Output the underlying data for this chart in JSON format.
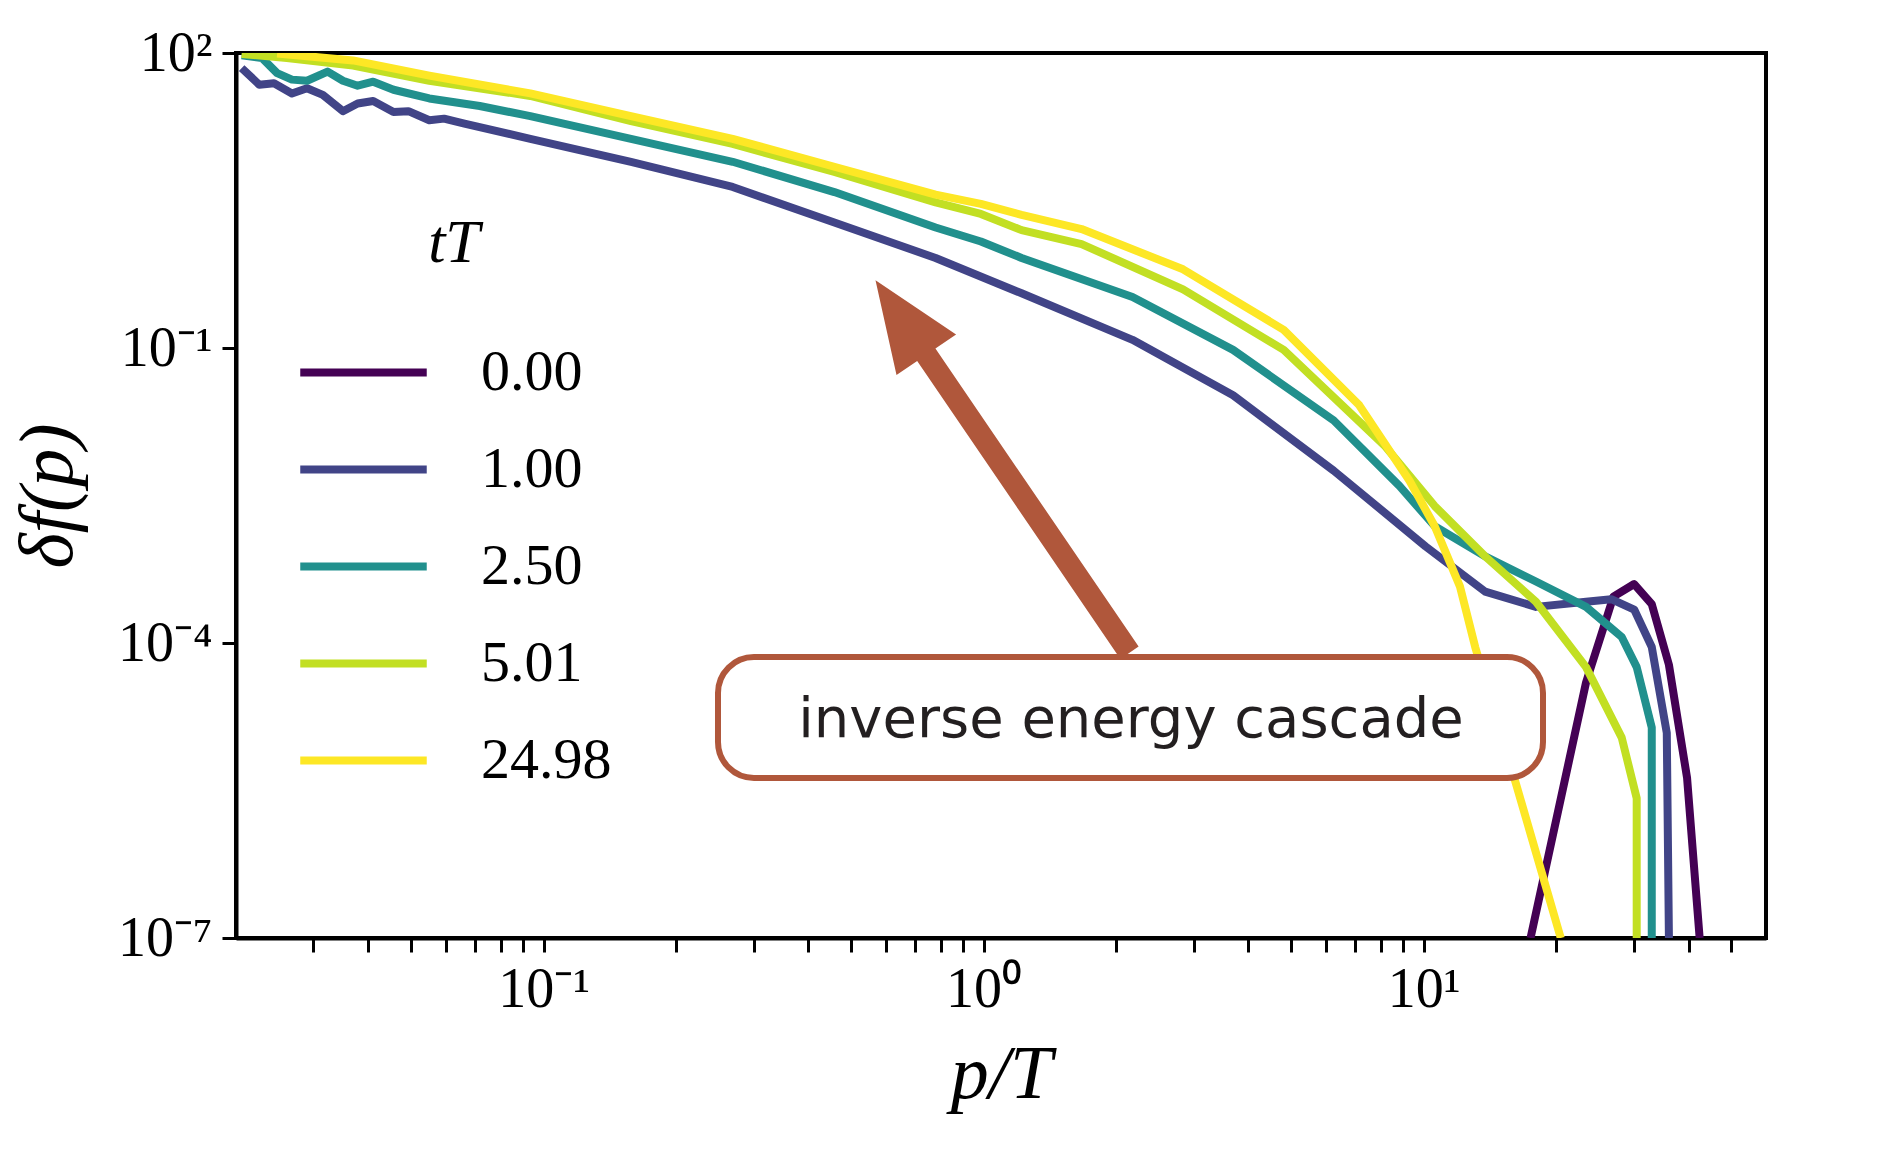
{
  "chart_data": {
    "type": "line",
    "xlabel": "p/T",
    "ylabel": "δf(p)",
    "legend_title": "tT",
    "log": "xy",
    "grid": false,
    "legend": "left",
    "xlim": [
      0.02,
      60
    ],
    "ylim": [
      1e-07,
      100
    ],
    "xticks": [
      {
        "value": 0.03,
        "label": null
      },
      {
        "value": 0.04,
        "label": null
      },
      {
        "value": 0.05,
        "label": null
      },
      {
        "value": 0.06,
        "label": null
      },
      {
        "value": 0.07,
        "label": null
      },
      {
        "value": 0.08,
        "label": null
      },
      {
        "value": 0.09,
        "label": null
      },
      {
        "value": 0.1,
        "label": "10⁻¹"
      },
      {
        "value": 0.2,
        "label": null
      },
      {
        "value": 0.3,
        "label": null
      },
      {
        "value": 0.4,
        "label": null
      },
      {
        "value": 0.5,
        "label": null
      },
      {
        "value": 0.6,
        "label": null
      },
      {
        "value": 0.7,
        "label": null
      },
      {
        "value": 0.8,
        "label": null
      },
      {
        "value": 0.9,
        "label": null
      },
      {
        "value": 1,
        "label": "10⁰"
      },
      {
        "value": 2,
        "label": null
      },
      {
        "value": 3,
        "label": null
      },
      {
        "value": 4,
        "label": null
      },
      {
        "value": 5,
        "label": null
      },
      {
        "value": 6,
        "label": null
      },
      {
        "value": 7,
        "label": null
      },
      {
        "value": 8,
        "label": null
      },
      {
        "value": 9,
        "label": null
      },
      {
        "value": 10,
        "label": "10¹"
      },
      {
        "value": 20,
        "label": null
      },
      {
        "value": 30,
        "label": null
      },
      {
        "value": 40,
        "label": null
      },
      {
        "value": 50,
        "label": null
      }
    ],
    "yticks": [
      {
        "value": 1e-07,
        "label": "10⁻⁷"
      },
      {
        "value": 0.0001,
        "label": "10⁻⁴"
      },
      {
        "value": 0.1,
        "label": "10⁻¹"
      },
      {
        "value": 100,
        "label": "10²"
      }
    ],
    "annotations": [
      "inverse energy cascade"
    ],
    "series": [
      {
        "name": "0.00",
        "color": "#440154",
        "x": [
          17.5,
          23.4,
          27.0,
          30.1,
          33.0,
          36.1,
          39.7,
          42.4
        ],
        "values": [
          1e-07,
          3.98e-05,
          0.000296,
          0.000398,
          0.000248,
          6.01e-05,
          4.24e-06,
          1e-07
        ]
      },
      {
        "name": "1.00",
        "color": "#414487",
        "x": [
          0.0206,
          0.0226,
          0.0244,
          0.0268,
          0.029,
          0.0315,
          0.035,
          0.0378,
          0.041,
          0.0456,
          0.0493,
          0.055,
          0.0594,
          0.0661,
          0.0933,
          0.158,
          0.269,
          0.458,
          0.778,
          1.22,
          2.18,
          3.69,
          6.25,
          10.1,
          13.8,
          18.0,
          23.4,
          26.7,
          30.1,
          33.0,
          35.7,
          36.1
        ],
        "values": [
          70.3,
          47.5,
          49.2,
          38.8,
          43.8,
          37.5,
          25.6,
          30.6,
          32.5,
          25.1,
          25.6,
          20.7,
          21.5,
          19.1,
          13.4,
          7.83,
          4.34,
          1.89,
          0.824,
          0.36,
          0.121,
          0.0331,
          0.00565,
          0.000962,
          0.000333,
          0.000233,
          0.000263,
          0.000279,
          0.000219,
          9.1e-05,
          1.22e-05,
          1e-07
        ]
      },
      {
        "name": "2.50",
        "color": "#21908d",
        "x": [
          0.0206,
          0.0229,
          0.0248,
          0.0268,
          0.029,
          0.0323,
          0.035,
          0.0378,
          0.041,
          0.0456,
          0.055,
          0.0716,
          0.0933,
          0.158,
          0.269,
          0.458,
          0.778,
          0.986,
          1.22,
          2.18,
          3.69,
          6.25,
          8.81,
          10.6,
          13.8,
          18.0,
          23.4,
          28.2,
          30.5,
          33.0,
          33.0
        ],
        "values": [
          94.6,
          89.1,
          62.4,
          53.6,
          52.2,
          64.7,
          52.2,
          46.5,
          51.1,
          42.3,
          34.5,
          28.9,
          22.8,
          13.4,
          7.83,
          3.85,
          1.68,
          1.21,
          0.824,
          0.33,
          0.0957,
          0.0183,
          0.00396,
          0.00154,
          0.00076,
          0.000422,
          0.000233,
          0.000115,
          5.68e-05,
          1.38e-05,
          1e-07
        ]
      },
      {
        "name": "5.01",
        "color": "#c2df23",
        "x": [
          0.0206,
          0.0261,
          0.0369,
          0.055,
          0.0933,
          0.158,
          0.269,
          0.458,
          0.778,
          0.986,
          1.22,
          1.67,
          2.84,
          4.81,
          8.15,
          10.6,
          13.8,
          18.0,
          23.4,
          28.2,
          30.5,
          30.5
        ],
        "values": [
          97.7,
          89.1,
          74.6,
          52.2,
          36.6,
          20.3,
          11.9,
          6.18,
          3.03,
          2.31,
          1.58,
          1.14,
          0.394,
          0.0957,
          0.0102,
          0.00247,
          0.00076,
          0.000263,
          5.68e-05,
          1.09e-05,
          2.64e-06,
          1e-07
        ]
      },
      {
        "name": "24.98",
        "color": "#fde725",
        "x": [
          0.0248,
          0.0369,
          0.055,
          0.0933,
          0.158,
          0.269,
          0.458,
          0.778,
          0.986,
          1.22,
          1.67,
          2.84,
          4.81,
          7.14,
          9.29,
          10.6,
          12.1,
          13.1,
          16.2,
          20.5
        ],
        "values": [
          99,
          84.0,
          58.9,
          38.8,
          22.8,
          13.4,
          6.97,
          3.63,
          2.92,
          2.26,
          1.62,
          0.631,
          0.153,
          0.0262,
          0.00446,
          0.00154,
          0.000374,
          9.1e-05,
          3.76e-06,
          1e-07
        ]
      }
    ]
  }
}
